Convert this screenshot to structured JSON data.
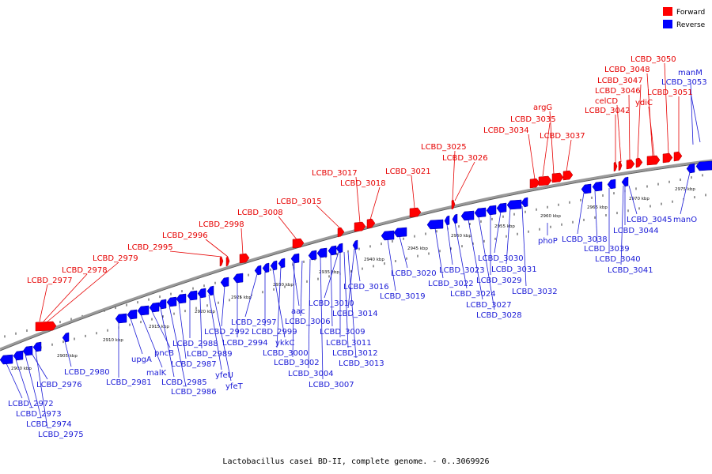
{
  "caption": "Lactobacillus casei BD-II, complete genome. - 0..3069926",
  "legend": [
    {
      "label": "Forward",
      "color": "#ff0000"
    },
    {
      "label": "Reverse",
      "color": "#0000ff"
    }
  ],
  "colors": {
    "forward": "#ff0000",
    "reverse": "#0000ff",
    "forward_label": "#e60000",
    "reverse_label": "#1a1ad6",
    "backbone": "#808080"
  },
  "ticks": [
    "2900 kbp",
    "2905 kbp",
    "2910 kbp",
    "2915 kbp",
    "2920 kbp",
    "2925 kbp",
    "2930 kbp",
    "2935 kbp",
    "2940 kbp",
    "2945 kbp",
    "2950 kbp",
    "2955 kbp",
    "2960 kbp",
    "2965 kbp",
    "2970 kbp",
    "2975 kbp"
  ],
  "forward_genes": [
    "LCBD_2977",
    "LCBD_2978",
    "LCBD_2979",
    "LCBD_2995",
    "LCBD_2996",
    "LCBD_2998",
    "LCBD_3008",
    "LCBD_3015",
    "LCBD_3017",
    "LCBD_3018",
    "LCBD_3021",
    "LCBD_3025",
    "LCBD_3026",
    "LCBD_3034",
    "LCBD_3035",
    "argG",
    "LCBD_3037",
    "LCBD_3042",
    "celCD",
    "LCBD_3046",
    "LCBD_3047",
    "LCBD_3048",
    "ydiC",
    "LCBD_3050",
    "LCBD_3051"
  ],
  "reverse_genes": [
    "LCBD_2972",
    "LCBD_2973",
    "LCBD_2974",
    "LCBD_2975",
    "LCBD_2976",
    "LCBD_2980",
    "LCBD_2981",
    "upgA",
    "malK",
    "pncB",
    "LCBD_2985",
    "LCBD_2986",
    "LCBD_2987",
    "LCBD_2988",
    "LCBD_2989",
    "yfeU",
    "yfeT",
    "LCBD_2992",
    "LCBD_2994",
    "LCBD_2997",
    "LCBD_2999",
    "ykkC",
    "LCBD_3000",
    "LCBD_3002",
    "LCBD_3004",
    "aac",
    "LCBD_3006",
    "LCBD_3007",
    "LCBD_3009",
    "LCBD_3010",
    "LCBD_3011",
    "LCBD_3012",
    "LCBD_3013",
    "LCBD_3014",
    "LCBD_3016",
    "LCBD_3019",
    "LCBD_3020",
    "LCBD_3022",
    "LCBD_3023",
    "LCBD_3024",
    "LCBD_3027",
    "LCBD_3028",
    "LCBD_3029",
    "LCBD_3030",
    "LCBD_3031",
    "LCBD_3032",
    "phoP",
    "LCBD_3038",
    "LCBD_3039",
    "LCBD_3040",
    "LCBD_3041",
    "LCBD_3044",
    "LCBD_3045",
    "manO",
    "manM",
    "LCBD_3053"
  ]
}
